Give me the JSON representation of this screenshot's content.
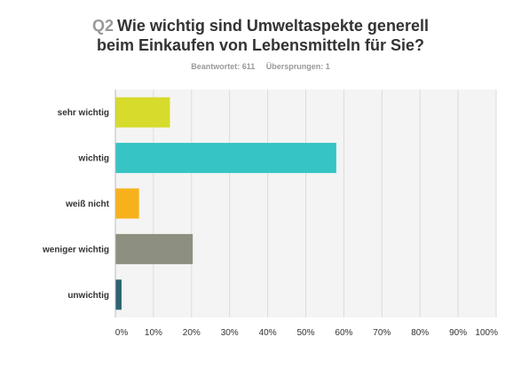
{
  "header": {
    "question_number": "Q2",
    "title_line1": "Wie wichtig sind Umweltaspekte generell",
    "title_line2": "beim Einkaufen von Lebensmitteln für Sie?",
    "answered": "Beantwortet: 611",
    "skipped": "Übersprungen: 1"
  },
  "chart_data": {
    "type": "bar",
    "orientation": "horizontal",
    "categories": [
      "sehr wichtig",
      "wichtig",
      "weiß nicht",
      "weniger wichtig",
      "unwichtig"
    ],
    "values": [
      14.2,
      57.9,
      6.1,
      20.2,
      1.5
    ],
    "unit": "%",
    "colors": [
      "#d6db2c",
      "#36c4c4",
      "#f7b21b",
      "#8d9080",
      "#2d6370"
    ],
    "xlim": [
      0,
      100
    ],
    "xticks": [
      "0%",
      "10%",
      "20%",
      "30%",
      "40%",
      "50%",
      "60%",
      "70%",
      "80%",
      "90%",
      "100%"
    ],
    "grid": true
  }
}
